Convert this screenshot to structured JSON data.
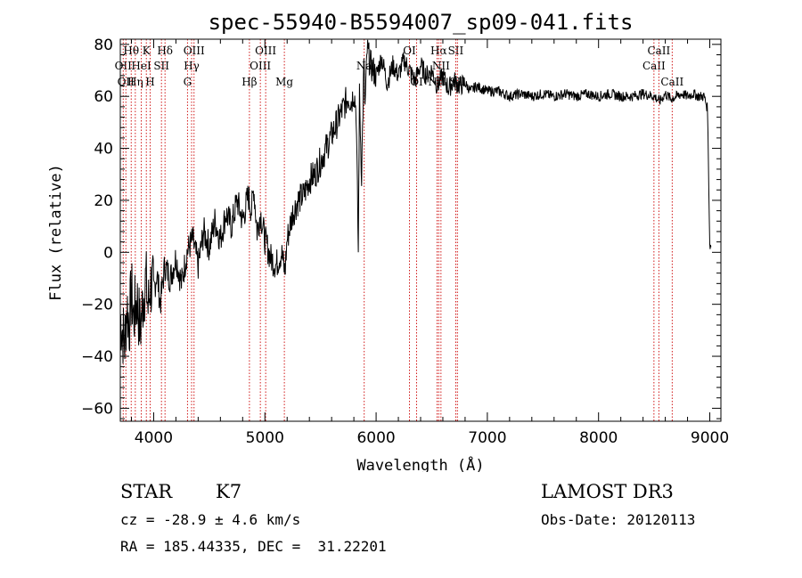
{
  "chart_data": {
    "type": "line",
    "title": "spec-55940-B5594007_sp09-041.fits",
    "xlabel": "Wavelength (Å)",
    "ylabel": "Flux (relative)",
    "xlim": [
      3700,
      9100
    ],
    "ylim": [
      -65,
      82
    ],
    "xticks": [
      4000,
      5000,
      6000,
      7000,
      8000,
      9000
    ],
    "yticks": [
      -60,
      -40,
      -20,
      0,
      20,
      40,
      60,
      80
    ],
    "series": [
      {
        "name": "flux",
        "x": [
          3700,
          3720,
          3740,
          3760,
          3780,
          3800,
          3820,
          3850,
          3880,
          3900,
          3930,
          3950,
          3970,
          4000,
          4030,
          4060,
          4100,
          4150,
          4200,
          4250,
          4300,
          4350,
          4400,
          4450,
          4500,
          4550,
          4600,
          4650,
          4700,
          4750,
          4800,
          4850,
          4880,
          4900,
          4930,
          4960,
          5000,
          5050,
          5100,
          5150,
          5180,
          5200,
          5250,
          5300,
          5350,
          5400,
          5450,
          5500,
          5550,
          5600,
          5650,
          5700,
          5750,
          5780,
          5800,
          5820,
          5840,
          5850,
          5870,
          5890,
          5900,
          5920,
          5950,
          6000,
          6050,
          6100,
          6150,
          6200,
          6250,
          6300,
          6350,
          6400,
          6450,
          6500,
          6550,
          6600,
          6650,
          6700,
          6750,
          6800,
          6850,
          6900,
          6950,
          7000,
          7100,
          7200,
          7300,
          7400,
          7500,
          7600,
          7700,
          7800,
          7900,
          8000,
          8100,
          8200,
          8300,
          8400,
          8500,
          8550,
          8600,
          8650,
          8700,
          8750,
          8800,
          8850,
          8900,
          8950,
          8980,
          9000,
          9010
        ],
        "values": [
          -25,
          -30,
          -35,
          -20,
          -28,
          -15,
          -25,
          -18,
          -30,
          -20,
          -10,
          -22,
          -12,
          -15,
          -8,
          -20,
          -5,
          -10,
          -2,
          -12,
          0,
          5,
          -5,
          8,
          2,
          12,
          5,
          15,
          10,
          20,
          12,
          22,
          16,
          25,
          8,
          15,
          5,
          -2,
          -5,
          0,
          -8,
          5,
          15,
          20,
          22,
          28,
          30,
          35,
          40,
          45,
          50,
          55,
          60,
          58,
          62,
          55,
          0,
          60,
          30,
          72,
          55,
          78,
          72,
          68,
          75,
          65,
          72,
          68,
          74,
          70,
          66,
          72,
          68,
          70,
          64,
          68,
          63,
          66,
          64,
          65,
          62,
          64,
          63,
          62,
          62,
          60,
          61,
          60,
          61,
          60,
          61,
          60,
          61,
          60,
          61,
          60,
          60,
          61,
          60,
          58,
          61,
          59,
          60,
          61,
          60,
          61,
          60,
          60,
          55,
          3,
          2
        ]
      }
    ],
    "spectral_lines": [
      {
        "wavelength": 3726,
        "label": "OII",
        "row": 2
      },
      {
        "wavelength": 3750,
        "label": "OII",
        "row": 3
      },
      {
        "wavelength": 3798,
        "label": "Hθ",
        "row": 1
      },
      {
        "wavelength": 3835,
        "label": "Hη",
        "row": 3
      },
      {
        "wavelength": 3889,
        "label": "HeI",
        "row": 2
      },
      {
        "wavelength": 3934,
        "label": "K",
        "row": 1
      },
      {
        "wavelength": 3968,
        "label": "H",
        "row": 3
      },
      {
        "wavelength": 4070,
        "label": "SII",
        "row": 2
      },
      {
        "wavelength": 4102,
        "label": "Hδ",
        "row": 1
      },
      {
        "wavelength": 4304,
        "label": "G",
        "row": 3
      },
      {
        "wavelength": 4341,
        "label": "Hγ",
        "row": 2
      },
      {
        "wavelength": 4363,
        "label": "OIII",
        "row": 1
      },
      {
        "wavelength": 4861,
        "label": "Hβ",
        "row": 3
      },
      {
        "wavelength": 4959,
        "label": "OIII",
        "row": 2
      },
      {
        "wavelength": 5007,
        "label": "OIII",
        "row": 1
      },
      {
        "wavelength": 5175,
        "label": "Mg",
        "row": 3
      },
      {
        "wavelength": 5893,
        "label": "Na",
        "row": 2
      },
      {
        "wavelength": 6300,
        "label": "OI",
        "row": 1
      },
      {
        "wavelength": 6364,
        "label": "OI",
        "row": 3
      },
      {
        "wavelength": 6548,
        "label": "NII",
        "row": 3
      },
      {
        "wavelength": 6563,
        "label": "Hα",
        "row": 1
      },
      {
        "wavelength": 6583,
        "label": "NII",
        "row": 2
      },
      {
        "wavelength": 6716,
        "label": "SII",
        "row": 1
      },
      {
        "wavelength": 6731,
        "label": "SII",
        "row": 3
      },
      {
        "wavelength": 8498,
        "label": "CaII",
        "row": 2
      },
      {
        "wavelength": 8542,
        "label": "CaII",
        "row": 1
      },
      {
        "wavelength": 8662,
        "label": "CaII",
        "row": 3
      }
    ]
  },
  "info": {
    "object_class": "STAR",
    "subclass": "K7",
    "survey": "LAMOST DR3",
    "redshift": "cz = -28.9 ± 4.6 km/s",
    "obs_date": "Obs-Date: 20120113",
    "coords": "RA = 185.44335, DEC =  31.22201"
  },
  "colors": {
    "line": "#000000",
    "spectral_line": "#cc0000",
    "background": "#ffffff"
  }
}
